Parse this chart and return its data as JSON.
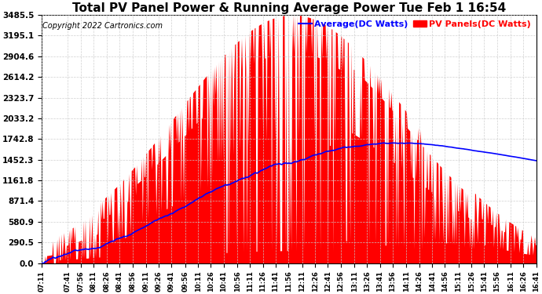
{
  "title": "Total PV Panel Power & Running Average Power Tue Feb 1 16:54",
  "copyright": "Copyright 2022 Cartronics.com",
  "legend_avg": "Average(DC Watts)",
  "legend_pv": "PV Panels(DC Watts)",
  "avg_color": "blue",
  "pv_color": "red",
  "yticks": [
    0.0,
    290.5,
    580.9,
    871.4,
    1161.8,
    1452.3,
    1742.8,
    2033.2,
    2323.7,
    2614.2,
    2904.6,
    3195.1,
    3485.5
  ],
  "xtick_labels": [
    "07:11",
    "07:41",
    "07:56",
    "08:11",
    "08:26",
    "08:41",
    "08:56",
    "09:11",
    "09:26",
    "09:41",
    "09:56",
    "10:11",
    "10:26",
    "10:41",
    "10:56",
    "11:11",
    "11:26",
    "11:41",
    "11:56",
    "12:11",
    "12:26",
    "12:41",
    "12:56",
    "13:11",
    "13:26",
    "13:41",
    "13:56",
    "14:11",
    "14:26",
    "14:41",
    "14:56",
    "15:11",
    "15:26",
    "15:41",
    "15:56",
    "16:11",
    "16:26",
    "16:41"
  ],
  "background_color": "#ffffff",
  "grid_color": "#cccccc",
  "title_fontsize": 11,
  "copyright_fontsize": 7,
  "legend_fontsize": 8,
  "ytick_fontsize": 7.5,
  "xtick_fontsize": 6
}
